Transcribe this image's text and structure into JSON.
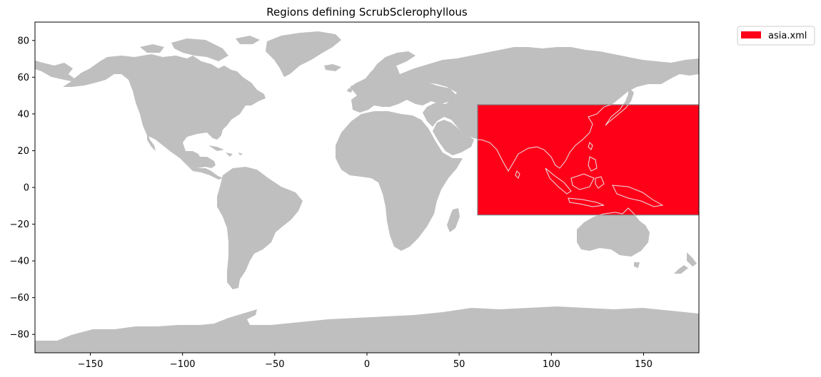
{
  "chart_data": {
    "type": "map",
    "title": "Regions defining ScrubSclerophyllous",
    "projection": "PlateCarree",
    "xlim": [
      -180,
      180
    ],
    "ylim": [
      -90,
      90
    ],
    "x_ticks": [
      -150,
      -100,
      -50,
      0,
      50,
      100,
      150
    ],
    "y_ticks": [
      80,
      60,
      40,
      20,
      0,
      -20,
      -40,
      -60,
      -80
    ],
    "land_color": "#bfbfbf",
    "ocean_color": "#ffffff",
    "regions": [
      {
        "name": "asia.xml",
        "lon_min": 60,
        "lon_max": 180,
        "lat_min": -15,
        "lat_max": 45,
        "fill": "#ff0019",
        "edge": "#808080"
      }
    ],
    "legend": {
      "location": "upper right, outside axes",
      "entries": [
        "asia.xml"
      ]
    }
  }
}
